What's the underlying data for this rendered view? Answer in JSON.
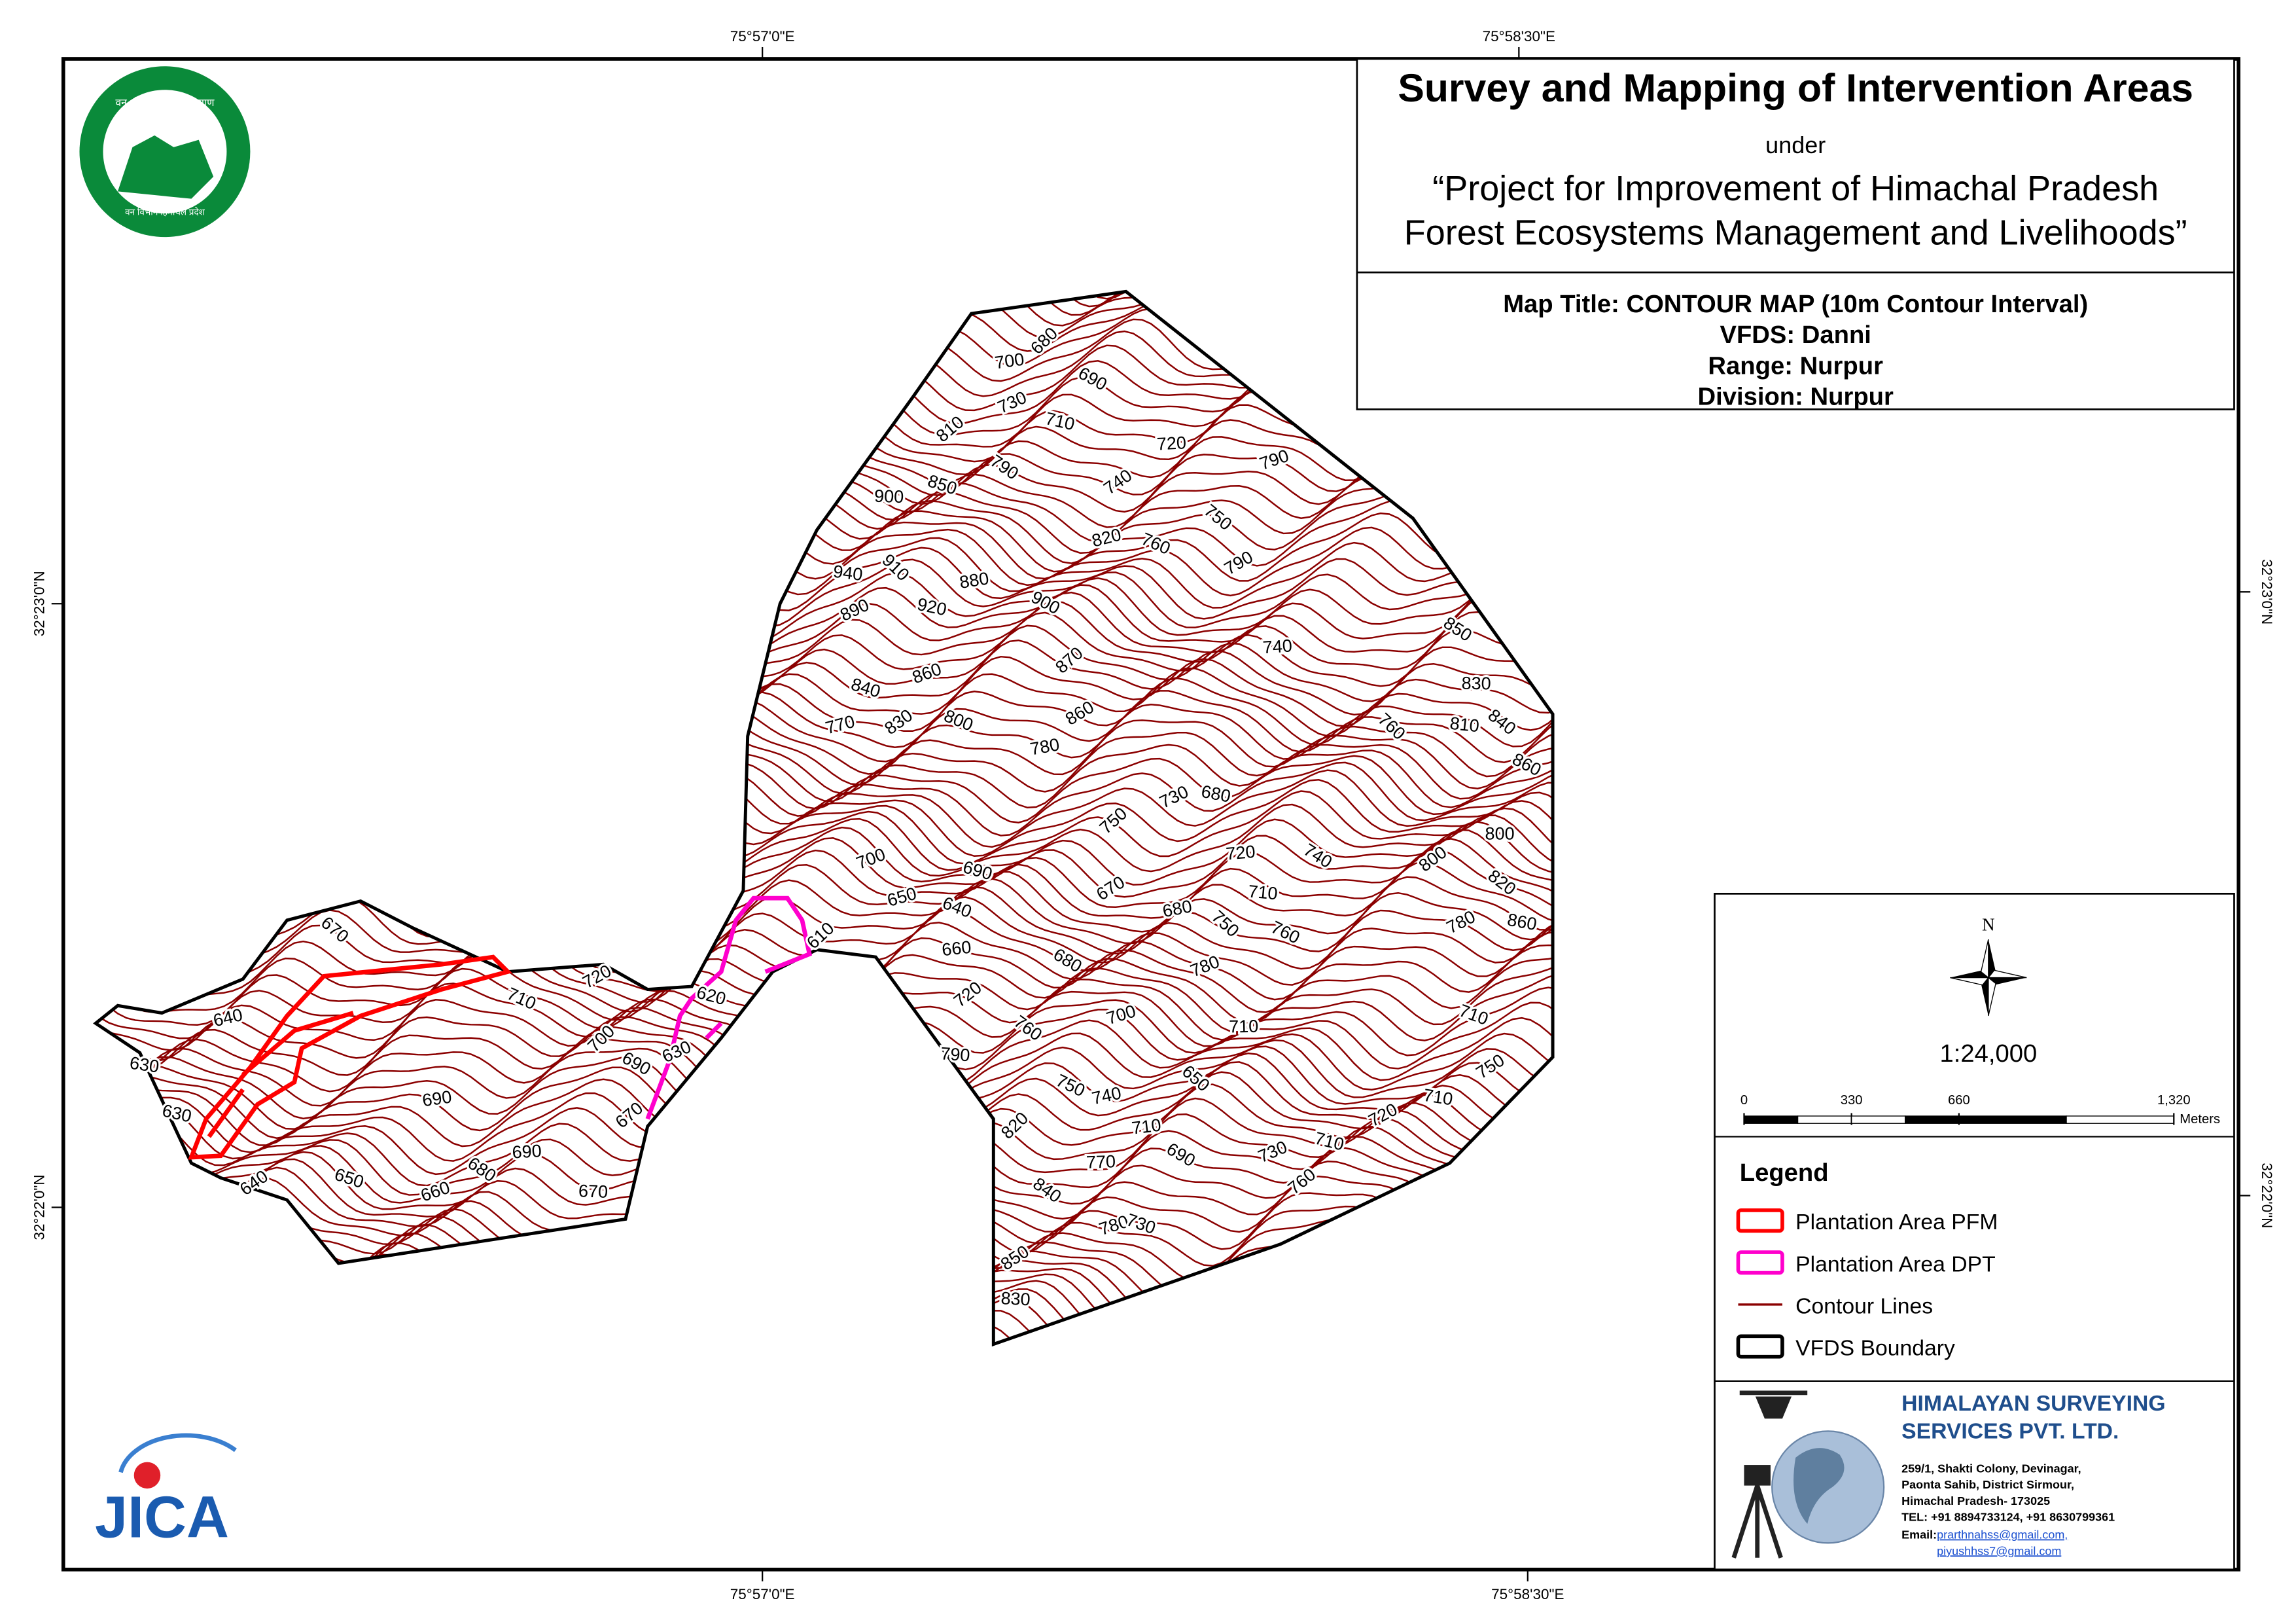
{
  "header": {
    "title": "Survey and Mapping of Intervention Areas",
    "under": "under",
    "project_line1": "“Project for Improvement of Himachal Pradesh",
    "project_line2": "Forest Ecosystems Management and Livelihoods”"
  },
  "map_info": {
    "map_title": "Map Title: CONTOUR MAP (10m Contour Interval)",
    "vfds": "VFDS: Danni",
    "range": "Range: Nurpur",
    "division": "Division: Nurpur"
  },
  "coordinates": {
    "top": [
      "75°57'0\"E",
      "75°58'30\"E"
    ],
    "bottom": [
      "75°57'0\"E",
      "75°58'30\"E"
    ],
    "left": [
      "32°23'0\"N",
      "32°22'0\"N"
    ],
    "right": [
      "32°23'0\"N",
      "32°22'0\"N"
    ]
  },
  "logos": {
    "forest_top": "वन श्री प्राण, विश्व कल्याण",
    "forest_bottom": "वन विभाग हिमाचल प्रदेश",
    "jica": "JICA"
  },
  "north": "N",
  "scale": "1:24,000",
  "scale_bar": {
    "ticks": [
      0,
      330,
      660,
      {
        "value": 1320,
        "label": "1,320"
      }
    ],
    "lim": [
      0,
      1320
    ],
    "unit": "Meters"
  },
  "legend": {
    "title": "Legend",
    "items": [
      {
        "name": "Plantation Area PFM",
        "color": "#ff0000"
      },
      {
        "name": "Plantation Area DPT",
        "color": "#ff00cc"
      },
      {
        "name": "Contour Lines",
        "color": "#8b0000"
      },
      {
        "name": "VFDS Boundary",
        "color": "#000000"
      }
    ]
  },
  "company": {
    "name1": "HIMALAYAN SURVEYING",
    "name2": "SERVICES PVT. LTD.",
    "address": [
      "259/1, Shakti Colony, Devinagar,",
      "Paonta Sahib, District Sirmour,",
      "Himachal Pradesh- 173025",
      "TEL: +91 8894733124, +91 8630799361"
    ],
    "email_label": "Email:",
    "emails": [
      "prarthnahss@gmail.com,",
      "piyushhss7@gmail.com"
    ]
  },
  "contour_labels": [
    "680",
    "700",
    "690",
    "730",
    "710",
    "810",
    "720",
    "790",
    "790",
    "850",
    "740",
    "900",
    "750",
    "820",
    "760",
    "790",
    "940",
    "910",
    "880",
    "900",
    "890",
    "920",
    "870",
    "740",
    "850",
    "860",
    "840",
    "830",
    "830",
    "840",
    "770",
    "800",
    "860",
    "810",
    "760",
    "780",
    "860",
    "730",
    "680",
    "750",
    "720",
    "740",
    "700",
    "690",
    "800",
    "800",
    "820",
    "650",
    "640",
    "670",
    "710",
    "750",
    "680",
    "760",
    "780",
    "860",
    "610",
    "660",
    "680",
    "780",
    "620",
    "720",
    "710",
    "760",
    "700",
    "710",
    "750",
    "790",
    "650",
    "740",
    "750",
    "720",
    "710",
    "820",
    "710",
    "690",
    "730",
    "710",
    "760",
    "770",
    "840",
    "780",
    "730",
    "850",
    "830",
    "670",
    "640",
    "710",
    "720",
    "630",
    "700",
    "690",
    "690",
    "630",
    "630",
    "670",
    "690",
    "680",
    "660",
    "650",
    "640",
    "670"
  ]
}
